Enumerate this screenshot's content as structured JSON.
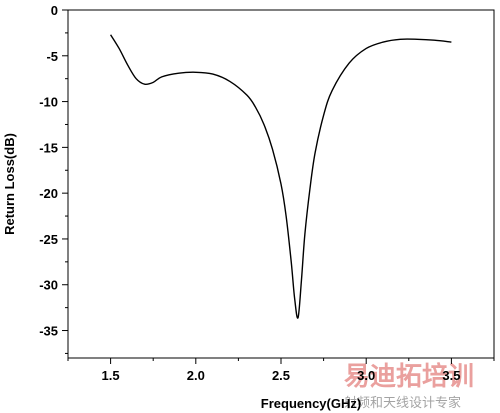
{
  "chart_data": {
    "type": "line",
    "title": "",
    "xlabel": "Frequency(GHz)",
    "ylabel": "Return Loss(dB)",
    "xlim": [
      1.25,
      3.75
    ],
    "ylim": [
      -38,
      0
    ],
    "x_ticks": [
      1.5,
      2.0,
      2.5,
      3.0,
      3.5
    ],
    "x_tick_labels": [
      "1.5",
      "2.0",
      "2.5",
      "3.0",
      "3.5"
    ],
    "y_ticks": [
      0,
      -5,
      -10,
      -15,
      -20,
      -25,
      -30,
      -35
    ],
    "y_tick_labels": [
      "0",
      "-5",
      "-10",
      "-15",
      "-20",
      "-25",
      "-30",
      "-35"
    ],
    "grid": false,
    "legend": "none",
    "line_color": "#000000",
    "series": [
      {
        "x": [
          1.5,
          1.55,
          1.6,
          1.65,
          1.7,
          1.75,
          1.8,
          1.9,
          2.0,
          2.1,
          2.2,
          2.3,
          2.35,
          2.4,
          2.45,
          2.5,
          2.53,
          2.56,
          2.58,
          2.6,
          2.62,
          2.64,
          2.67,
          2.7,
          2.75,
          2.8,
          2.9,
          3.0,
          3.1,
          3.2,
          3.3,
          3.4,
          3.5
        ],
        "y": [
          -2.7,
          -4.2,
          -6.0,
          -7.5,
          -8.1,
          -7.9,
          -7.3,
          -6.9,
          -6.8,
          -7.0,
          -7.8,
          -9.3,
          -10.6,
          -12.5,
          -15.2,
          -19.0,
          -22.5,
          -27.5,
          -31.5,
          -33.6,
          -29.5,
          -24.5,
          -19.5,
          -15.6,
          -11.5,
          -8.8,
          -5.8,
          -4.2,
          -3.5,
          -3.2,
          -3.2,
          -3.3,
          -3.5
        ]
      }
    ]
  },
  "watermark": {
    "main": "易迪拓培训",
    "sub": "射频和天线设计专家"
  }
}
